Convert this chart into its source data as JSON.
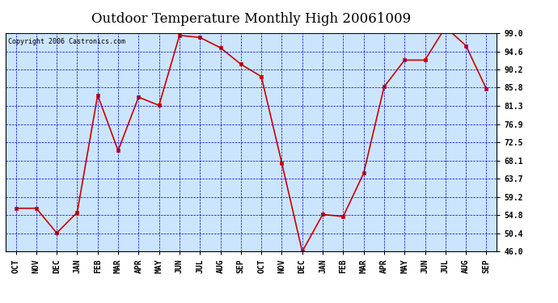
{
  "title": "Outdoor Temperature Monthly High 20061009",
  "copyright": "Copyright 2006 Castronics.com",
  "x_labels": [
    "OCT",
    "NOV",
    "DEC",
    "JAN",
    "FEB",
    "MAR",
    "APR",
    "MAY",
    "JUN",
    "JUL",
    "AUG",
    "SEP",
    "OCT",
    "NOV",
    "DEC",
    "JAN",
    "FEB",
    "MAR",
    "APR",
    "MAY",
    "JUN",
    "JUL",
    "AUG",
    "SEP"
  ],
  "y_values": [
    56.5,
    56.5,
    50.5,
    55.5,
    84.0,
    70.5,
    83.5,
    81.5,
    98.5,
    98.0,
    95.5,
    91.5,
    88.5,
    67.5,
    46.0,
    55.0,
    54.5,
    65.0,
    86.0,
    92.5,
    92.5,
    100.5,
    96.0,
    85.5
  ],
  "line_color": "#cc0000",
  "marker_color": "#cc0000",
  "bg_color": "#cce5ff",
  "grid_color": "#0000cc",
  "y_ticks": [
    46.0,
    50.4,
    54.8,
    59.2,
    63.7,
    68.1,
    72.5,
    76.9,
    81.3,
    85.8,
    90.2,
    94.6,
    99.0
  ],
  "y_min": 46.0,
  "y_max": 99.0,
  "title_fontsize": 12,
  "copyright_fontsize": 6,
  "tick_fontsize": 7
}
